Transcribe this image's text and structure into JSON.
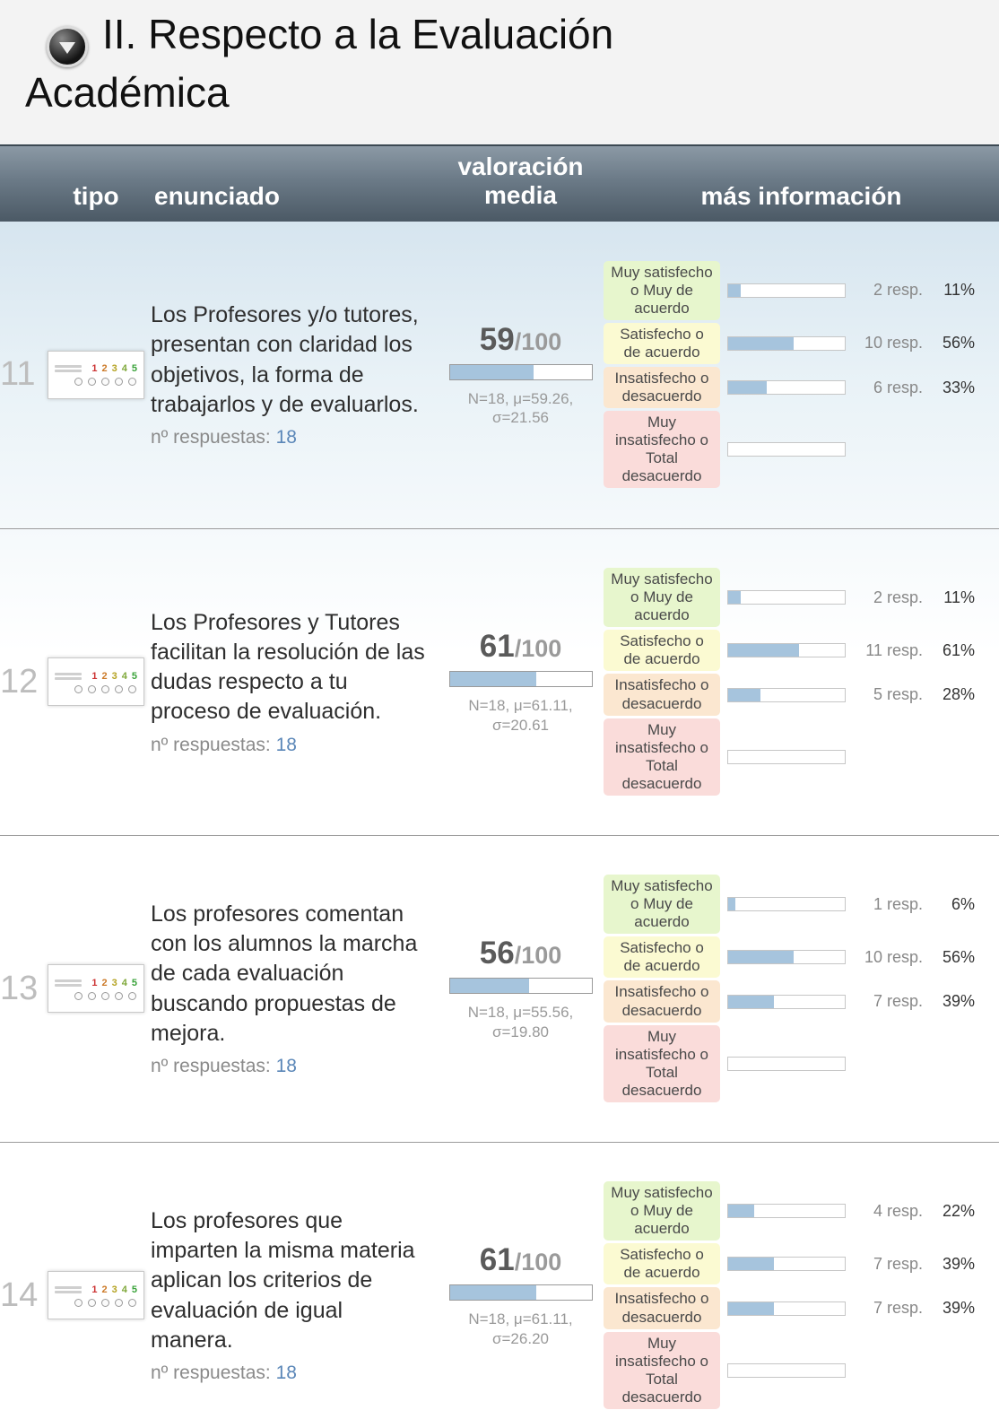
{
  "title": "II. Respecto a la Evaluación Académica",
  "header": {
    "tipo": "tipo",
    "enunciado": "enunciado",
    "valoracion": "valoración media",
    "mas_informacion": "más información"
  },
  "labels": {
    "respuestas": "nº respuestas:"
  },
  "widget": {
    "digits": [
      "1",
      "2",
      "3",
      "4",
      "5"
    ]
  },
  "colors": {
    "bar_fill": "#a6c4dd",
    "link": "#5b87b8"
  },
  "categories": [
    {
      "label": "Muy satisfecho o Muy de acuerdo",
      "color": "#e7f6cd"
    },
    {
      "label": "Satisfecho o de acuerdo",
      "color": "#fbfad2"
    },
    {
      "label": "Insatisfecho o desacuerdo",
      "color": "#fbe7d0"
    },
    {
      "label": "Muy insatisfecho o Total desacuerdo",
      "color": "#fadcda"
    }
  ],
  "rows": [
    {
      "number": "11",
      "statement": "Los Profesores y/o tutores, presentan con claridad los objetivos, la forma de trabajarlos y de evaluarlos.",
      "respuestas": "18",
      "score": "59",
      "score_max": "/100",
      "score_pct": 59,
      "stats": "N=18, μ=59.26, σ=21.56",
      "answers": [
        {
          "responses": "2 resp.",
          "percent": "11%",
          "bar_pct": 11
        },
        {
          "responses": "10 resp.",
          "percent": "56%",
          "bar_pct": 56
        },
        {
          "responses": "6 resp.",
          "percent": "33%",
          "bar_pct": 33
        },
        {
          "responses": "",
          "percent": "",
          "bar_pct": 0
        }
      ]
    },
    {
      "number": "12",
      "statement": "Los Profesores y Tutores facilitan la resolución de las dudas respecto a tu proceso de evaluación.",
      "respuestas": "18",
      "score": "61",
      "score_max": "/100",
      "score_pct": 61,
      "stats": "N=18, μ=61.11, σ=20.61",
      "answers": [
        {
          "responses": "2 resp.",
          "percent": "11%",
          "bar_pct": 11
        },
        {
          "responses": "11 resp.",
          "percent": "61%",
          "bar_pct": 61
        },
        {
          "responses": "5 resp.",
          "percent": "28%",
          "bar_pct": 28
        },
        {
          "responses": "",
          "percent": "",
          "bar_pct": 0
        }
      ]
    },
    {
      "number": "13",
      "statement": "Los profesores comentan con los alumnos la marcha de cada evaluación buscando propuestas de mejora.",
      "respuestas": "18",
      "score": "56",
      "score_max": "/100",
      "score_pct": 56,
      "stats": "N=18, μ=55.56, σ=19.80",
      "answers": [
        {
          "responses": "1 resp.",
          "percent": "6%",
          "bar_pct": 6
        },
        {
          "responses": "10 resp.",
          "percent": "56%",
          "bar_pct": 56
        },
        {
          "responses": "7 resp.",
          "percent": "39%",
          "bar_pct": 39
        },
        {
          "responses": "",
          "percent": "",
          "bar_pct": 0
        }
      ]
    },
    {
      "number": "14",
      "statement": "Los profesores que imparten la misma materia aplican los criterios de evaluación de igual manera.",
      "respuestas": "18",
      "score": "61",
      "score_max": "/100",
      "score_pct": 61,
      "stats": "N=18, μ=61.11, σ=26.20",
      "answers": [
        {
          "responses": "4 resp.",
          "percent": "22%",
          "bar_pct": 22
        },
        {
          "responses": "7 resp.",
          "percent": "39%",
          "bar_pct": 39
        },
        {
          "responses": "7 resp.",
          "percent": "39%",
          "bar_pct": 39
        },
        {
          "responses": "",
          "percent": "",
          "bar_pct": 0
        }
      ]
    }
  ]
}
